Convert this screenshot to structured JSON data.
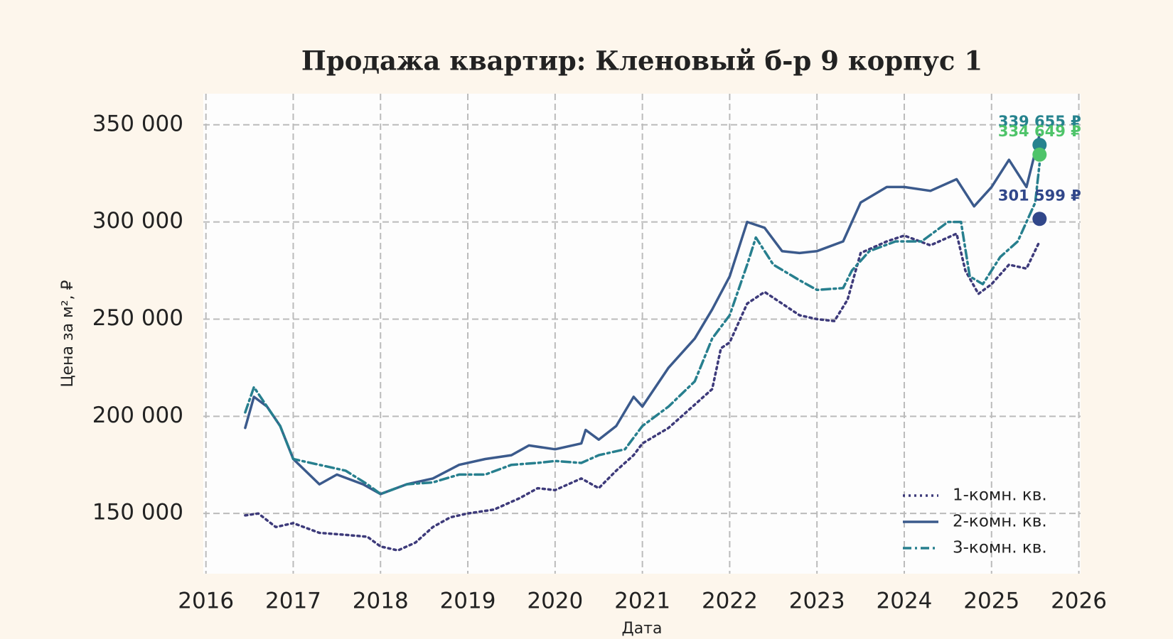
{
  "chart_data": {
    "type": "line",
    "title": "Продажа квартир: Кленовый б-р 9 корпус 1",
    "x_label": "Дата",
    "y_label": "Цена за м², ₽",
    "xlim": [
      2015.97,
      2026.02
    ],
    "ylim": [
      119000,
      366000
    ],
    "xticks": [
      2016,
      2017,
      2018,
      2019,
      2020,
      2021,
      2022,
      2023,
      2024,
      2025,
      2026
    ],
    "yticks": [
      {
        "value": 150000,
        "label": "150 000"
      },
      {
        "value": 200000,
        "label": "200 000"
      },
      {
        "value": 250000,
        "label": "250 000"
      },
      {
        "value": 300000,
        "label": "300 000"
      },
      {
        "value": 350000,
        "label": "350 000"
      }
    ],
    "grid": true,
    "legend": "lower right",
    "series": [
      {
        "name": "1-комн. кв.",
        "color": "#3d3a7a",
        "linestyle": "dotted",
        "x": [
          2016.45,
          2016.6,
          2016.8,
          2017.0,
          2017.3,
          2017.6,
          2017.85,
          2018.0,
          2018.2,
          2018.4,
          2018.6,
          2018.8,
          2019.0,
          2019.3,
          2019.6,
          2019.8,
          2020.0,
          2020.3,
          2020.5,
          2020.7,
          2020.9,
          2021.0,
          2021.3,
          2021.6,
          2021.8,
          2021.9,
          2022.0,
          2022.2,
          2022.4,
          2022.6,
          2022.8,
          2023.0,
          2023.2,
          2023.35,
          2023.5,
          2023.8,
          2024.0,
          2024.3,
          2024.6,
          2024.7,
          2024.85,
          2025.0,
          2025.2,
          2025.4,
          2025.55
        ],
        "values": [
          149000,
          150000,
          143000,
          145000,
          140000,
          139000,
          138000,
          133000,
          131000,
          135000,
          143000,
          148000,
          150000,
          152000,
          158000,
          163000,
          162000,
          168000,
          163000,
          172000,
          180000,
          186000,
          194000,
          206000,
          214000,
          235000,
          238000,
          258000,
          264000,
          258000,
          252000,
          250000,
          249000,
          260000,
          284000,
          290000,
          293000,
          288000,
          294000,
          275000,
          263000,
          268000,
          278000,
          276000,
          290000
        ]
      },
      {
        "name": "2-комн. кв.",
        "color": "#3b5a8c",
        "linestyle": "solid",
        "x": [
          2016.45,
          2016.55,
          2016.7,
          2016.85,
          2017.0,
          2017.3,
          2017.5,
          2017.8,
          2018.0,
          2018.3,
          2018.6,
          2018.9,
          2019.2,
          2019.5,
          2019.7,
          2020.0,
          2020.3,
          2020.35,
          2020.5,
          2020.7,
          2020.9,
          2021.0,
          2021.3,
          2021.6,
          2021.8,
          2022.0,
          2022.2,
          2022.4,
          2022.6,
          2022.8,
          2023.0,
          2023.3,
          2023.5,
          2023.8,
          2024.0,
          2024.3,
          2024.6,
          2024.8,
          2025.0,
          2025.2,
          2025.4,
          2025.55
        ],
        "values": [
          194000,
          210000,
          205000,
          195000,
          178000,
          165000,
          170000,
          165000,
          160000,
          165000,
          168000,
          175000,
          178000,
          180000,
          185000,
          183000,
          186000,
          193000,
          188000,
          195000,
          210000,
          205000,
          225000,
          240000,
          255000,
          272000,
          300000,
          297000,
          285000,
          284000,
          285000,
          290000,
          310000,
          318000,
          318000,
          316000,
          322000,
          308000,
          318000,
          332000,
          318000,
          345000
        ]
      },
      {
        "name": "3-комн. кв.",
        "color": "#277f8e",
        "linestyle": "dashdot",
        "x": [
          2016.45,
          2016.55,
          2016.7,
          2016.85,
          2017.0,
          2017.3,
          2017.6,
          2017.85,
          2018.0,
          2018.3,
          2018.6,
          2018.9,
          2019.2,
          2019.5,
          2019.8,
          2020.0,
          2020.3,
          2020.5,
          2020.8,
          2021.0,
          2021.3,
          2021.6,
          2021.8,
          2022.0,
          2022.2,
          2022.3,
          2022.5,
          2022.8,
          2023.0,
          2023.3,
          2023.4,
          2023.6,
          2023.9,
          2024.2,
          2024.5,
          2024.65,
          2024.75,
          2024.9,
          2025.1,
          2025.3,
          2025.5,
          2025.55
        ],
        "values": [
          202000,
          215000,
          205000,
          195000,
          178000,
          175000,
          172000,
          165000,
          160000,
          165000,
          166000,
          170000,
          170000,
          175000,
          176000,
          177000,
          176000,
          180000,
          183000,
          195000,
          205000,
          218000,
          240000,
          252000,
          278000,
          292000,
          278000,
          270000,
          265000,
          266000,
          275000,
          285000,
          290000,
          290000,
          300000,
          300000,
          272000,
          268000,
          282000,
          290000,
          310000,
          330000
        ]
      }
    ],
    "annotations": [
      {
        "x": 2025.55,
        "y": 301599,
        "label": "301 599 ₽",
        "color": "#31478a"
      },
      {
        "x": 2025.55,
        "y": 339655,
        "label": "339 655 ₽",
        "color": "#26838e"
      },
      {
        "x": 2025.55,
        "y": 334649,
        "label": "334 649 ₽",
        "color": "#4fc46a"
      }
    ]
  }
}
